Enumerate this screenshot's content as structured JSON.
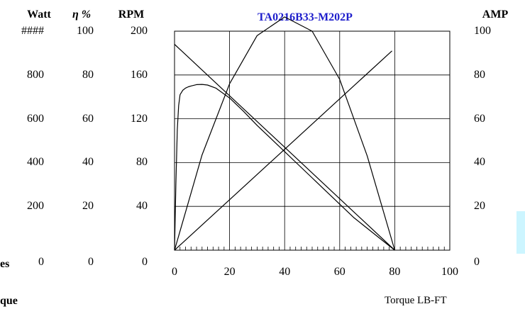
{
  "chart_data": {
    "type": "line",
    "title": "TA0216B33-M202P",
    "xlabel": "Torque  LB-FT",
    "xlim": [
      0,
      100
    ],
    "x_ticks": [
      "0",
      "20",
      "40",
      "60",
      "80",
      "100"
    ],
    "axes": [
      {
        "header": "Watt",
        "ticks": [
          "0",
          "200",
          "400",
          "600",
          "800",
          "####"
        ],
        "range": [
          0,
          1000
        ]
      },
      {
        "header": "η %",
        "ticks": [
          "0",
          "20",
          "40",
          "60",
          "80",
          "100"
        ],
        "range": [
          0,
          100
        ]
      },
      {
        "header": "RPM",
        "ticks": [
          "0",
          "40",
          "80",
          "120",
          "160",
          "200"
        ],
        "range": [
          0,
          200
        ]
      },
      {
        "header": "AMP",
        "ticks": [
          "0",
          "20",
          "40",
          "60",
          "80",
          "100"
        ],
        "range": [
          0,
          100
        ],
        "side": "right"
      }
    ],
    "left_partial_labels": [
      "es",
      "que"
    ],
    "grid": true,
    "series": [
      {
        "axis": "RPM",
        "x": [
          0,
          80
        ],
        "values": [
          188,
          0
        ]
      },
      {
        "axis": "AMP",
        "x": [
          0,
          79
        ],
        "values": [
          0,
          91
        ]
      },
      {
        "axis": "Watt",
        "x": [
          0,
          10,
          20,
          30,
          40,
          50,
          60,
          70,
          80
        ],
        "values": [
          0,
          435,
          760,
          980,
          1065,
          1000,
          780,
          430,
          0
        ]
      },
      {
        "axis": "η %",
        "x": [
          0,
          0.5,
          1,
          1.5,
          2,
          3,
          4,
          5,
          6,
          8,
          10,
          12,
          15,
          20,
          25,
          30,
          35,
          40,
          45,
          50,
          55,
          60,
          65,
          70,
          75,
          80
        ],
        "values": [
          0,
          30,
          55,
          66,
          71,
          73,
          74,
          74.6,
          75,
          75.6,
          75.7,
          75.4,
          74,
          69.5,
          63.5,
          57,
          51,
          45,
          39,
          33,
          27,
          21,
          15,
          10,
          5,
          0
        ]
      }
    ]
  }
}
